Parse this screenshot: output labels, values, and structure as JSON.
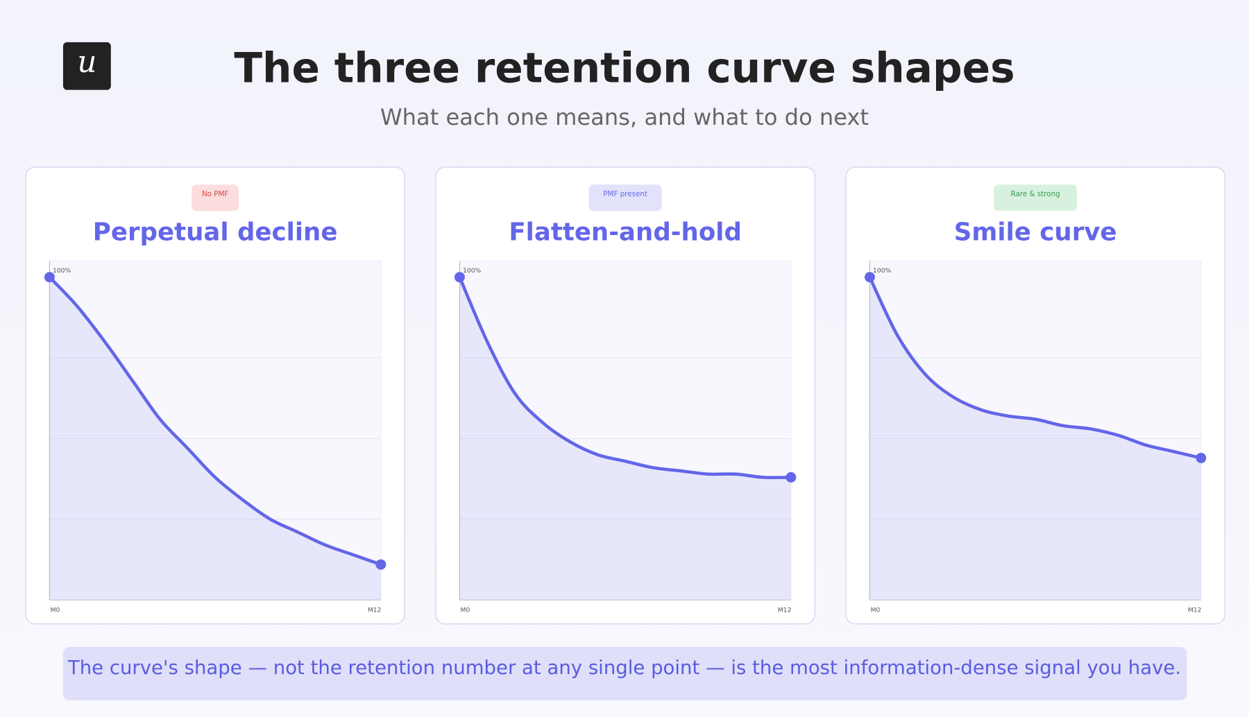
{
  "logo": "u",
  "title": "The three retention curve shapes",
  "subtitle": "What each one means, and what to do next",
  "chart_data": [
    {
      "type": "line",
      "badge": "No PMF",
      "title": "Perpetual decline",
      "categories": [
        "M0",
        null,
        null,
        null,
        null,
        null,
        null,
        null,
        null,
        null,
        null,
        null,
        "M12"
      ],
      "values": [
        100,
        91,
        80,
        68,
        56,
        47,
        38,
        31,
        25,
        21,
        17,
        14,
        11
      ],
      "ylim": [
        0,
        105
      ],
      "yticks": [
        {
          "value": 100,
          "label": "100%"
        }
      ],
      "gridlines": [
        25,
        50,
        75
      ],
      "color": "#6366e8"
    },
    {
      "type": "line",
      "badge": "PMF present",
      "title": "Flatten-and-hold",
      "categories": [
        "M0",
        null,
        null,
        null,
        null,
        null,
        null,
        null,
        null,
        null,
        null,
        null,
        "M12"
      ],
      "values": [
        100,
        80,
        64,
        55,
        49,
        45,
        43,
        41,
        40,
        39,
        39,
        38,
        38
      ],
      "ylim": [
        0,
        105
      ],
      "yticks": [
        {
          "value": 100,
          "label": "100%"
        }
      ],
      "gridlines": [
        25,
        50,
        75
      ],
      "color": "#6366e8"
    },
    {
      "type": "line",
      "badge": "Rare & strong",
      "title": "Smile curve",
      "categories": [
        "M0",
        null,
        null,
        null,
        null,
        null,
        null,
        null,
        null,
        null,
        null,
        null,
        "M12"
      ],
      "values": [
        100,
        82,
        70,
        63,
        59,
        57,
        56,
        54,
        53,
        51,
        48,
        46,
        44
      ],
      "ylim": [
        0,
        105
      ],
      "yticks": [
        {
          "value": 100,
          "label": "100%"
        }
      ],
      "gridlines": [
        25,
        50,
        75
      ],
      "color": "#6366e8"
    }
  ],
  "footer": "The curve's shape — not the retention number at any single point — is the most information-dense signal you have."
}
